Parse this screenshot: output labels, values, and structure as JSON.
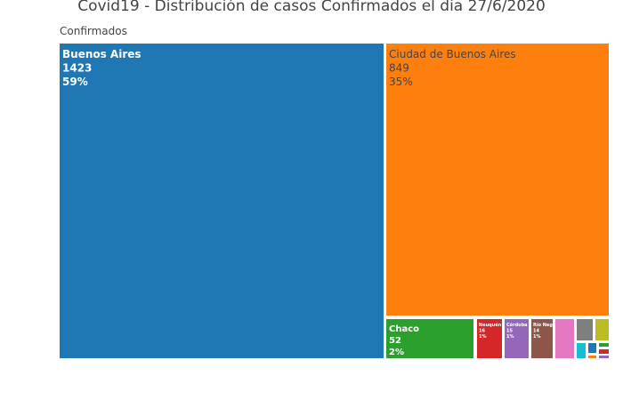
{
  "title": "Covid19 - Distribución de casos Confirmados el dia 27/6/2020",
  "root_label": "Confirmados",
  "chart_data": {
    "type": "treemap",
    "title": "Covid19 - Distribución de casos Confirmados el dia 27/6/2020",
    "root": "Confirmados",
    "items": [
      {
        "name": "Buenos Aires",
        "value": 1423,
        "percent": "59%",
        "color": "#1f77b4",
        "text_color": "#ffffff"
      },
      {
        "name": "Ciudad de Buenos Aires",
        "value": 849,
        "percent": "35%",
        "color": "#ff7f0e",
        "text_color": "#444444"
      },
      {
        "name": "Chaco",
        "value": 52,
        "percent": "2%",
        "color": "#2ca02c",
        "text_color": "#ffffff"
      },
      {
        "name": "Neuquén",
        "value": 16,
        "percent": "1%",
        "color": "#d62728",
        "text_color": "#ffffff"
      },
      {
        "name": "Córdoba",
        "value": 15,
        "percent": "1%",
        "color": "#9467bd",
        "text_color": "#ffffff"
      },
      {
        "name": "Río Negro",
        "value": 14,
        "percent": "1%",
        "color": "#8c564b",
        "text_color": "#ffffff"
      },
      {
        "name": "",
        "value": null,
        "percent": "",
        "color": "#e377c2",
        "text_color": "#ffffff"
      },
      {
        "name": "",
        "value": null,
        "percent": "",
        "color": "#7f7f7f",
        "text_color": "#ffffff"
      },
      {
        "name": "",
        "value": null,
        "percent": "",
        "color": "#bcbd22",
        "text_color": "#ffffff"
      },
      {
        "name": "",
        "value": null,
        "percent": "",
        "color": "#17becf",
        "text_color": "#ffffff"
      },
      {
        "name": "",
        "value": null,
        "percent": "",
        "color": "#1f77b4",
        "text_color": "#ffffff"
      },
      {
        "name": "",
        "value": null,
        "percent": "",
        "color": "#2ca02c",
        "text_color": "#ffffff"
      },
      {
        "name": "",
        "value": null,
        "percent": "",
        "color": "#d62728",
        "text_color": "#ffffff"
      },
      {
        "name": "",
        "value": null,
        "percent": "",
        "color": "#ff7f0e",
        "text_color": "#ffffff"
      },
      {
        "name": "",
        "value": null,
        "percent": "",
        "color": "#9467bd",
        "text_color": "#ffffff"
      }
    ]
  }
}
